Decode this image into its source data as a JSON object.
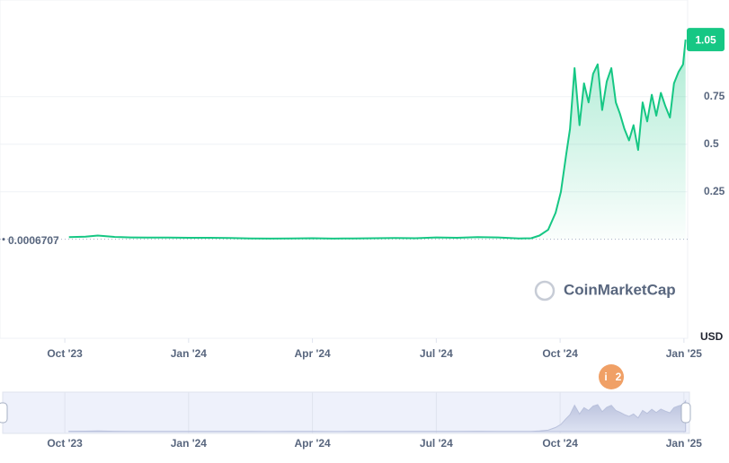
{
  "chart_data": {
    "type": "line",
    "currency_label": "USD",
    "watermark": "CoinMarketCap",
    "price_label": 1.05,
    "baseline": 0.0006707,
    "event_marker": {
      "icon": "i",
      "count": "2"
    },
    "color": "#16c784",
    "x": [
      0.1,
      0.5,
      0.8,
      1.2,
      1.6,
      2,
      2.5,
      3,
      3.5,
      4,
      4.5,
      5,
      5.5,
      6,
      6.5,
      7,
      7.5,
      8,
      8.5,
      9,
      9.5,
      10,
      10.5,
      11,
      11.3,
      11.5,
      11.71,
      11.89,
      12.02,
      12.15,
      12.24,
      12.35,
      12.47,
      12.58,
      12.69,
      12.8,
      12.91,
      13.02,
      13.13,
      13.24,
      13.35,
      13.45,
      13.56,
      13.67,
      13.78,
      13.89,
      14.0,
      14.11,
      14.22,
      14.33,
      14.44,
      14.55,
      14.66,
      14.76,
      14.87,
      14.98,
      15.04
    ],
    "values": [
      0.012,
      0.014,
      0.02,
      0.013,
      0.01,
      0.009,
      0.009,
      0.008,
      0.008,
      0.007,
      0.005,
      0.004,
      0.005,
      0.006,
      0.004,
      0.005,
      0.006,
      0.007,
      0.006,
      0.01,
      0.008,
      0.012,
      0.01,
      0.005,
      0.006,
      0.02,
      0.05,
      0.14,
      0.25,
      0.45,
      0.58,
      0.9,
      0.6,
      0.82,
      0.72,
      0.87,
      0.92,
      0.68,
      0.83,
      0.9,
      0.72,
      0.66,
      0.58,
      0.52,
      0.6,
      0.47,
      0.72,
      0.62,
      0.76,
      0.65,
      0.77,
      0.7,
      0.64,
      0.82,
      0.88,
      0.92,
      1.05
    ],
    "xlim": [
      -1.57,
      15.09
    ],
    "xticks": [
      {
        "value": 0,
        "label": "Oct '23"
      },
      {
        "value": 3,
        "label": "Jan '24"
      },
      {
        "value": 6,
        "label": "Apr '24"
      },
      {
        "value": 9,
        "label": "Jul '24"
      },
      {
        "value": 12,
        "label": "Oct '24"
      },
      {
        "value": 15,
        "label": "Jan '25"
      }
    ],
    "ylim": [
      -0.52,
      1.258
    ],
    "yticks": [
      0.25,
      0.5,
      0.75
    ],
    "grid": true
  }
}
